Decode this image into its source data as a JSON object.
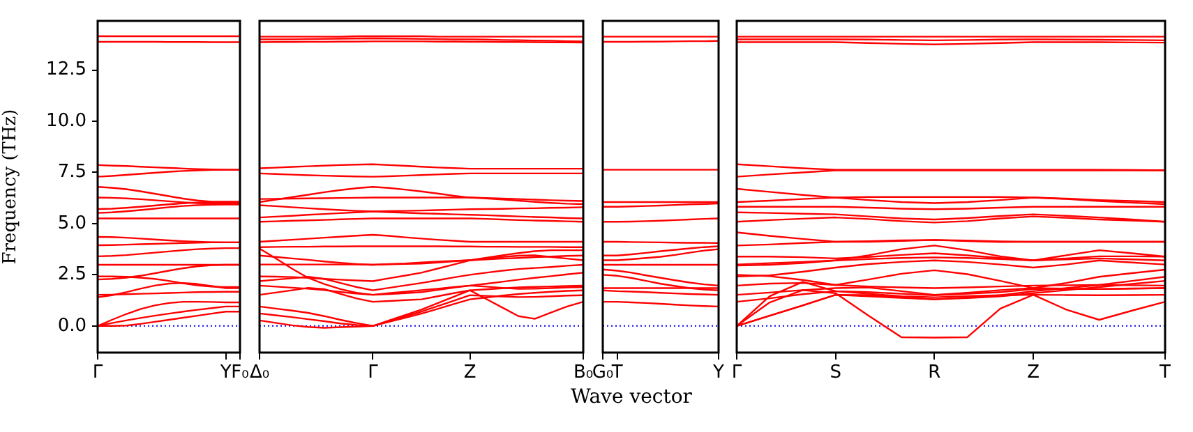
{
  "chart_data": [
    {
      "type": "line",
      "ylabel": "Frequency (THz)",
      "categories": [
        "Γ",
        null,
        null,
        null,
        null,
        null,
        null,
        null,
        null,
        "Y",
        "F₀"
      ],
      "ylim": [
        -1.3,
        14.9
      ],
      "yticks": [
        {
          "value": 0,
          "label": "0.0"
        },
        2.5,
        {
          "value": 5,
          "label": "5.0"
        },
        7.5,
        {
          "value": 10,
          "label": "10.0"
        },
        12.5
      ],
      "ref_lines": [
        {
          "axis": "y",
          "value": 0,
          "color": "#0000ff",
          "line_style": "dotted"
        }
      ],
      "series": [
        {
          "color": "#ff0000",
          "values": [
            14.15,
            14.15,
            14.15,
            14.15,
            14.15,
            14.15,
            14.15,
            14.15,
            14.15,
            14.15,
            14.15
          ]
        },
        {
          "color": "#ff0000",
          "values": [
            13.88,
            13.88,
            13.88,
            13.88,
            13.88,
            13.87,
            13.87,
            13.87,
            13.86,
            13.86,
            13.86
          ]
        },
        {
          "color": "#ff0000",
          "values": [
            7.86,
            7.83,
            7.81,
            7.78,
            7.75,
            7.72,
            7.69,
            7.66,
            7.64,
            7.63,
            7.63
          ]
        },
        {
          "color": "#ff0000",
          "values": [
            7.29,
            7.33,
            7.38,
            7.43,
            7.48,
            7.53,
            7.57,
            7.6,
            7.62,
            7.63,
            7.63
          ]
        },
        {
          "color": "#ff0000",
          "values": [
            6.79,
            6.75,
            6.68,
            6.58,
            6.46,
            6.34,
            6.22,
            6.13,
            6.07,
            6.05,
            6.05
          ]
        },
        {
          "color": "#ff0000",
          "values": [
            6.27,
            6.26,
            6.23,
            6.19,
            6.14,
            6.09,
            6.04,
            6.0,
            5.98,
            5.98,
            5.98
          ]
        },
        {
          "color": "#ff0000",
          "values": [
            5.71,
            5.73,
            5.77,
            5.82,
            5.88,
            5.94,
            5.99,
            6.03,
            6.06,
            6.07,
            6.07
          ]
        },
        {
          "color": "#ff0000",
          "values": [
            5.52,
            5.55,
            5.6,
            5.66,
            5.73,
            5.8,
            5.86,
            5.9,
            5.92,
            5.93,
            5.93
          ]
        },
        {
          "color": "#ff0000",
          "values": [
            5.25,
            5.25,
            5.25,
            5.25,
            5.25,
            5.25,
            5.25,
            5.25,
            5.25,
            5.25,
            5.25
          ]
        },
        {
          "color": "#ff0000",
          "values": [
            4.35,
            4.34,
            4.31,
            4.27,
            4.22,
            4.18,
            4.14,
            4.11,
            4.09,
            4.08,
            4.08
          ]
        },
        {
          "color": "#ff0000",
          "values": [
            3.94,
            3.95,
            3.97,
            3.99,
            4.01,
            4.03,
            4.05,
            4.07,
            4.08,
            4.08,
            4.08
          ]
        },
        {
          "color": "#ff0000",
          "values": [
            3.4,
            3.42,
            3.46,
            3.52,
            3.58,
            3.64,
            3.7,
            3.75,
            3.78,
            3.8,
            3.8
          ]
        },
        {
          "color": "#ff0000",
          "values": [
            2.99,
            2.99,
            2.99,
            2.99,
            2.99,
            2.99,
            2.99,
            2.99,
            2.99,
            2.99,
            2.99
          ]
        },
        {
          "color": "#ff0000",
          "values": [
            2.42,
            2.42,
            2.4,
            2.36,
            2.3,
            2.2,
            2.08,
            1.98,
            1.92,
            1.9,
            1.9
          ]
        },
        {
          "color": "#ff0000",
          "values": [
            2.27,
            2.3,
            2.36,
            2.45,
            2.57,
            2.7,
            2.82,
            2.91,
            2.97,
            2.99,
            2.99
          ]
        },
        {
          "color": "#ff0000",
          "values": [
            1.52,
            1.53,
            1.55,
            1.57,
            1.59,
            1.61,
            1.63,
            1.65,
            1.66,
            1.67,
            1.67
          ]
        },
        {
          "color": "#ff0000",
          "values": [
            1.4,
            1.5,
            1.65,
            1.82,
            1.97,
            2.07,
            2.1,
            2.05,
            1.95,
            1.85,
            1.85
          ]
        },
        {
          "color": "#ff0000",
          "values": [
            0,
            0.3,
            0.58,
            0.82,
            1.0,
            1.12,
            1.18,
            1.18,
            1.17,
            1.15,
            1.15
          ]
        },
        {
          "color": "#ff0000",
          "values": [
            0,
            0.14,
            0.27,
            0.39,
            0.5,
            0.6,
            0.7,
            0.79,
            0.87,
            0.95,
            0.95
          ]
        },
        {
          "color": "#ff0000",
          "values": [
            0,
            0,
            0.02,
            0.1,
            0.2,
            0.3,
            0.4,
            0.5,
            0.6,
            0.7,
            0.7
          ]
        }
      ]
    },
    {
      "type": "line",
      "tick_labels": "x",
      "categories": [
        "Δ₀",
        null,
        null,
        null,
        null,
        null,
        null,
        "Γ",
        null,
        null,
        null,
        null,
        null,
        "Z",
        null,
        null,
        null,
        null,
        null,
        null,
        "B₀"
      ],
      "ylim": [
        -1.3,
        14.9
      ],
      "ref_lines": [
        {
          "axis": "y",
          "value": 0,
          "color": "#0000ff",
          "line_style": "dotted"
        }
      ],
      "series": [
        {
          "color": "#ff0000",
          "values": [
            14.13,
            14.13,
            14.13,
            14.13,
            14.13,
            14.13,
            14.15,
            14.15,
            14.15,
            14.15,
            14.15,
            14.13,
            14.13,
            14.13,
            14.13,
            14.13,
            14.13,
            14.13,
            14.13,
            14.13,
            14.13
          ]
        },
        {
          "color": "#ff0000",
          "values": [
            14.0,
            14.0,
            14.0,
            14.01,
            14.02,
            14.03,
            14.04,
            14.05,
            14.04,
            14.03,
            14.02,
            14.01,
            14.0,
            14.0,
            13.99,
            13.97,
            13.96,
            13.94,
            13.93,
            13.91,
            13.9
          ]
        },
        {
          "color": "#ff0000",
          "values": [
            13.86,
            13.87,
            13.87,
            13.88,
            13.88,
            13.89,
            13.89,
            13.9,
            13.9,
            13.9,
            13.9,
            13.89,
            13.89,
            13.88,
            13.88,
            13.87,
            13.87,
            13.86,
            13.85,
            13.85,
            13.84
          ]
        },
        {
          "color": "#ff0000",
          "values": [
            7.7,
            7.73,
            7.77,
            7.8,
            7.83,
            7.86,
            7.88,
            7.9,
            7.86,
            7.82,
            7.78,
            7.74,
            7.71,
            7.68,
            7.68,
            7.68,
            7.68,
            7.68,
            7.68,
            7.68,
            7.68
          ]
        },
        {
          "color": "#ff0000",
          "values": [
            7.45,
            7.42,
            7.39,
            7.36,
            7.34,
            7.32,
            7.3,
            7.29,
            7.31,
            7.34,
            7.37,
            7.4,
            7.43,
            7.45,
            7.45,
            7.45,
            7.45,
            7.45,
            7.45,
            7.45,
            7.45
          ]
        },
        {
          "color": "#ff0000",
          "values": [
            6.05,
            6.17,
            6.29,
            6.41,
            6.53,
            6.64,
            6.73,
            6.79,
            6.74,
            6.66,
            6.57,
            6.47,
            6.36,
            6.27,
            6.25,
            6.22,
            6.2,
            6.17,
            6.14,
            6.12,
            6.1
          ]
        },
        {
          "color": "#ff0000",
          "values": [
            6.2,
            6.21,
            6.22,
            6.23,
            6.24,
            6.25,
            6.26,
            6.27,
            6.27,
            6.27,
            6.27,
            6.27,
            6.27,
            6.27,
            6.23,
            6.18,
            6.12,
            6.06,
            6.01,
            5.97,
            5.95
          ]
        },
        {
          "color": "#ff0000",
          "values": [
            5.9,
            5.85,
            5.8,
            5.75,
            5.7,
            5.66,
            5.62,
            5.59,
            5.61,
            5.62,
            5.64,
            5.66,
            5.68,
            5.7,
            5.71,
            5.72,
            5.74,
            5.75,
            5.77,
            5.78,
            5.8
          ]
        },
        {
          "color": "#ff0000",
          "values": [
            5.3,
            5.34,
            5.38,
            5.43,
            5.47,
            5.51,
            5.55,
            5.59,
            5.56,
            5.53,
            5.5,
            5.48,
            5.45,
            5.43,
            5.41,
            5.38,
            5.35,
            5.32,
            5.3,
            5.27,
            5.25
          ]
        },
        {
          "color": "#ff0000",
          "values": [
            5.09,
            5.11,
            5.14,
            5.16,
            5.18,
            5.21,
            5.23,
            5.25,
            5.25,
            5.25,
            5.25,
            5.25,
            5.25,
            5.25,
            5.23,
            5.2,
            5.17,
            5.15,
            5.13,
            5.11,
            5.09
          ]
        },
        {
          "color": "#ff0000",
          "values": [
            4.11,
            4.16,
            4.21,
            4.26,
            4.31,
            4.36,
            4.41,
            4.45,
            4.4,
            4.33,
            4.27,
            4.21,
            4.16,
            4.11,
            4.11,
            4.11,
            4.11,
            4.11,
            4.11,
            4.11,
            4.11
          ]
        },
        {
          "color": "#ff0000",
          "values": [
            3.85,
            3.86,
            3.87,
            3.87,
            3.88,
            3.88,
            3.89,
            3.89,
            3.89,
            3.89,
            3.89,
            3.89,
            3.88,
            3.88,
            3.87,
            3.87,
            3.86,
            3.86,
            3.86,
            3.85,
            3.85
          ]
        },
        {
          "color": "#ff0000",
          "values": [
            3.78,
            3.3,
            2.8,
            2.35,
            2.05,
            1.8,
            1.62,
            1.52,
            1.56,
            1.6,
            1.65,
            1.76,
            1.87,
            1.97,
            1.92,
            1.86,
            1.81,
            1.82,
            1.85,
            1.88,
            1.9
          ]
        },
        {
          "color": "#ff0000",
          "values": [
            3.44,
            3.37,
            3.3,
            3.23,
            3.15,
            3.08,
            3.02,
            2.99,
            3.01,
            3.03,
            3.05,
            3.1,
            3.16,
            3.21,
            3.33,
            3.45,
            3.56,
            3.65,
            3.7,
            3.7,
            3.7
          ]
        },
        {
          "color": "#ff0000",
          "values": [
            3.0,
            3.0,
            3.0,
            3.0,
            3.0,
            3.0,
            3.0,
            2.99,
            3.02,
            3.05,
            3.1,
            3.14,
            3.18,
            3.21,
            3.25,
            3.29,
            3.32,
            3.36,
            3.39,
            3.42,
            3.44
          ]
        },
        {
          "color": "#ff0000",
          "values": [
            2.42,
            2.41,
            2.39,
            2.35,
            2.3,
            2.26,
            2.22,
            2.19,
            2.33,
            2.46,
            2.6,
            2.8,
            3.0,
            3.21,
            3.29,
            3.37,
            3.43,
            3.45,
            3.37,
            3.29,
            3.21
          ]
        },
        {
          "color": "#ff0000",
          "values": [
            2.19,
            2.26,
            2.33,
            2.4,
            2.3,
            2.1,
            1.9,
            1.74,
            1.86,
            1.98,
            2.1,
            2.23,
            2.37,
            2.5,
            2.6,
            2.7,
            2.78,
            2.83,
            2.88,
            2.94,
            2.99
          ]
        },
        {
          "color": "#ff0000",
          "values": [
            1.97,
            1.92,
            1.87,
            1.82,
            1.75,
            1.66,
            1.58,
            1.52,
            1.6,
            1.67,
            1.75,
            1.82,
            1.9,
            1.97,
            2.06,
            2.16,
            2.26,
            2.35,
            2.43,
            2.52,
            2.6
          ]
        },
        {
          "color": "#ff0000",
          "values": [
            1.52,
            1.63,
            1.74,
            1.86,
            1.8,
            1.56,
            1.34,
            1.18,
            1.22,
            1.26,
            1.3,
            1.45,
            1.6,
            1.74,
            1.79,
            1.84,
            1.88,
            1.91,
            1.93,
            1.95,
            1.97
          ]
        },
        {
          "color": "#ff0000",
          "values": [
            0.95,
            0.85,
            0.75,
            0.64,
            0.48,
            0.3,
            0.14,
            0,
            0.23,
            0.47,
            0.7,
            0.97,
            1.23,
            1.5,
            1.47,
            1.44,
            1.41,
            1.42,
            1.45,
            1.48,
            1.5
          ]
        },
        {
          "color": "#ff0000",
          "values": [
            0.61,
            0.52,
            0.43,
            0.33,
            0.23,
            0.12,
            0.05,
            0,
            0.27,
            0.53,
            0.8,
            1.11,
            1.43,
            1.74,
            1.32,
            0.9,
            0.48,
            0.35,
            0.65,
            0.95,
            1.18
          ]
        },
        {
          "color": "#ff0000",
          "values": [
            0.27,
            0.15,
            0.03,
            -0.05,
            -0.09,
            -0.06,
            -0.03,
            0,
            0.2,
            0.4,
            0.6,
            0.83,
            1.07,
            1.3,
            1.39,
            1.48,
            1.56,
            1.62,
            1.67,
            1.71,
            1.74
          ]
        }
      ]
    },
    {
      "type": "line",
      "tick_labels": "x",
      "xlabel": "Wave vector",
      "categories": [
        "G₀",
        "T",
        null,
        null,
        null,
        null,
        null,
        null,
        "Y"
      ],
      "ylim": [
        -1.3,
        14.9
      ],
      "ref_lines": [
        {
          "axis": "y",
          "value": 0,
          "color": "#0000ff",
          "line_style": "dotted"
        }
      ],
      "series": [
        {
          "color": "#ff0000",
          "values": [
            14.13,
            14.13,
            14.13,
            14.13,
            14.13,
            14.13,
            14.13,
            14.13,
            14.13
          ]
        },
        {
          "color": "#ff0000",
          "values": [
            13.88,
            13.88,
            13.88,
            13.89,
            13.89,
            13.9,
            13.91,
            13.91,
            13.92
          ]
        },
        {
          "color": "#ff0000",
          "values": [
            7.63,
            7.63,
            7.63,
            7.63,
            7.63,
            7.63,
            7.63,
            7.63,
            7.63
          ]
        },
        {
          "color": "#ff0000",
          "values": [
            6.05,
            6.05,
            6.05,
            6.05,
            6.05,
            6.05,
            6.05,
            6.05,
            6.05
          ]
        },
        {
          "color": "#ff0000",
          "values": [
            5.82,
            5.82,
            5.84,
            5.86,
            5.88,
            5.91,
            5.94,
            5.96,
            5.98
          ]
        },
        {
          "color": "#ff0000",
          "values": [
            5.09,
            5.09,
            5.1,
            5.12,
            5.14,
            5.17,
            5.2,
            5.23,
            5.25
          ]
        },
        {
          "color": "#ff0000",
          "values": [
            4.11,
            4.11,
            4.1,
            4.09,
            4.08,
            4.07,
            4.06,
            4.06,
            4.05
          ]
        },
        {
          "color": "#ff0000",
          "values": [
            3.44,
            3.44,
            3.5,
            3.57,
            3.65,
            3.72,
            3.79,
            3.85,
            3.89
          ]
        },
        {
          "color": "#ff0000",
          "values": [
            3.21,
            3.21,
            3.26,
            3.32,
            3.38,
            3.47,
            3.58,
            3.68,
            3.75
          ]
        },
        {
          "color": "#ff0000",
          "values": [
            2.99,
            2.99,
            2.99,
            2.99,
            2.99,
            2.99,
            2.99,
            2.99,
            2.99
          ]
        },
        {
          "color": "#ff0000",
          "values": [
            2.76,
            2.7,
            2.6,
            2.47,
            2.35,
            2.23,
            2.12,
            2.03,
            1.97
          ]
        },
        {
          "color": "#ff0000",
          "values": [
            2.5,
            2.45,
            2.34,
            2.2,
            2.06,
            1.95,
            1.85,
            1.78,
            1.74
          ]
        },
        {
          "color": "#ff0000",
          "values": [
            1.85,
            1.85,
            1.85,
            1.85,
            1.85,
            1.85,
            1.85,
            1.85,
            1.85
          ]
        },
        {
          "color": "#ff0000",
          "values": [
            1.74,
            1.7,
            1.68,
            1.65,
            1.62,
            1.59,
            1.56,
            1.54,
            1.52
          ]
        },
        {
          "color": "#ff0000",
          "values": [
            1.18,
            1.18,
            1.15,
            1.12,
            1.08,
            1.04,
            1.0,
            0.97,
            0.95
          ]
        }
      ]
    },
    {
      "type": "line",
      "tick_labels": "x",
      "categories": [
        "Γ",
        null,
        null,
        "S",
        null,
        null,
        "R",
        null,
        null,
        "Z",
        null,
        null,
        null,
        "T"
      ],
      "ylim": [
        -1.3,
        14.9
      ],
      "ref_lines": [
        {
          "axis": "y",
          "value": 0,
          "color": "#0000ff",
          "line_style": "dotted"
        }
      ],
      "series": [
        {
          "color": "#ff0000",
          "values": [
            14.13,
            14.13,
            14.13,
            14.13,
            14.13,
            14.13,
            14.13,
            14.13,
            14.13,
            14.13,
            14.13,
            14.13,
            14.13,
            14.13
          ]
        },
        {
          "color": "#ff0000",
          "values": [
            14.0,
            14.0,
            14.0,
            14.0,
            13.99,
            13.97,
            13.95,
            13.97,
            13.99,
            14.0,
            13.99,
            13.98,
            13.97,
            13.95
          ]
        },
        {
          "color": "#ff0000",
          "values": [
            13.86,
            13.86,
            13.86,
            13.86,
            13.82,
            13.78,
            13.75,
            13.78,
            13.82,
            13.86,
            13.86,
            13.86,
            13.85,
            13.84
          ]
        },
        {
          "color": "#ff0000",
          "values": [
            7.9,
            7.8,
            7.7,
            7.63,
            7.63,
            7.63,
            7.63,
            7.63,
            7.63,
            7.63,
            7.63,
            7.63,
            7.62,
            7.6
          ]
        },
        {
          "color": "#ff0000",
          "values": [
            7.29,
            7.4,
            7.5,
            7.6,
            7.6,
            7.6,
            7.6,
            7.6,
            7.6,
            7.6,
            7.6,
            7.6,
            7.6,
            7.6
          ]
        },
        {
          "color": "#ff0000",
          "values": [
            6.7,
            6.55,
            6.4,
            6.27,
            6.15,
            6.05,
            6.0,
            6.05,
            6.15,
            6.27,
            6.22,
            6.15,
            6.1,
            6.05
          ]
        },
        {
          "color": "#ff0000",
          "values": [
            6.05,
            6.12,
            6.2,
            6.27,
            6.3,
            6.3,
            6.3,
            6.3,
            6.3,
            6.27,
            6.2,
            6.1,
            6.02,
            5.95
          ]
        },
        {
          "color": "#ff0000",
          "values": [
            5.82,
            5.82,
            5.82,
            5.82,
            5.78,
            5.73,
            5.7,
            5.73,
            5.78,
            5.82,
            5.82,
            5.82,
            5.82,
            5.82
          ]
        },
        {
          "color": "#ff0000",
          "values": [
            5.55,
            5.52,
            5.48,
            5.45,
            5.35,
            5.25,
            5.2,
            5.27,
            5.37,
            5.45,
            5.38,
            5.3,
            5.2,
            5.09
          ]
        },
        {
          "color": "#ff0000",
          "values": [
            5.09,
            5.17,
            5.24,
            5.3,
            5.22,
            5.12,
            5.05,
            5.12,
            5.25,
            5.35,
            5.28,
            5.2,
            5.15,
            5.09
          ]
        },
        {
          "color": "#ff0000",
          "values": [
            4.57,
            4.4,
            4.25,
            4.11,
            4.11,
            4.15,
            4.2,
            4.17,
            4.13,
            4.11,
            4.11,
            4.11,
            4.11,
            4.11
          ]
        },
        {
          "color": "#ff0000",
          "values": [
            3.93,
            3.98,
            4.05,
            4.11,
            4.14,
            4.18,
            4.2,
            4.14,
            4.1,
            4.11,
            4.11,
            4.11,
            4.11,
            4.11
          ]
        },
        {
          "color": "#ff0000",
          "values": [
            3.39,
            3.39,
            3.36,
            3.3,
            3.37,
            3.47,
            3.55,
            3.45,
            3.32,
            3.2,
            3.3,
            3.4,
            3.4,
            3.39
          ]
        },
        {
          "color": "#ff0000",
          "values": [
            3.0,
            3.07,
            3.13,
            3.2,
            3.45,
            3.75,
            3.93,
            3.7,
            3.4,
            3.2,
            3.45,
            3.7,
            3.55,
            3.39
          ]
        },
        {
          "color": "#ff0000",
          "values": [
            2.95,
            2.99,
            3.07,
            3.2,
            3.27,
            3.32,
            3.35,
            3.32,
            3.27,
            3.2,
            3.25,
            3.3,
            3.25,
            3.2
          ]
        },
        {
          "color": "#ff0000",
          "values": [
            2.42,
            2.47,
            2.65,
            2.85,
            3.02,
            3.13,
            3.2,
            3.13,
            3.0,
            2.85,
            3.0,
            3.2,
            3.1,
            3.0
          ]
        },
        {
          "color": "#ff0000",
          "values": [
            2.5,
            2.43,
            2.25,
            2.0,
            2.27,
            2.55,
            2.72,
            2.53,
            2.2,
            1.85,
            2.1,
            2.4,
            2.58,
            2.75
          ]
        },
        {
          "color": "#ff0000",
          "values": [
            1.97,
            2.07,
            2.1,
            2.0,
            1.93,
            1.88,
            1.85,
            1.88,
            1.93,
            1.97,
            1.99,
            2.0,
            1.99,
            1.97
          ]
        },
        {
          "color": "#ff0000",
          "values": [
            1.52,
            1.63,
            1.75,
            1.85,
            1.88,
            1.7,
            1.52,
            1.62,
            1.75,
            1.85,
            1.82,
            1.8,
            1.83,
            1.85
          ]
        },
        {
          "color": "#ff0000",
          "values": [
            1.18,
            1.35,
            1.55,
            1.7,
            1.57,
            1.45,
            1.4,
            1.46,
            1.5,
            1.52,
            1.51,
            1.5,
            1.51,
            1.52
          ]
        },
        {
          "color": "#ff0000",
          "values": [
            0,
            0.5,
            1.0,
            1.52,
            1.51,
            1.4,
            1.3,
            1.4,
            1.5,
            1.7,
            1.85,
            2.0,
            2.2,
            2.4
          ]
        },
        {
          "color": "#ff0000",
          "values": [
            0,
            0.5,
            1.0,
            1.52,
            1.45,
            1.37,
            1.3,
            1.36,
            1.45,
            1.6,
            1.75,
            1.9,
            2.05,
            2.2
          ]
        },
        {
          "color": "#ff0000",
          "values": [
            0,
            1.45,
            2.15,
            1.7,
            1.65,
            1.57,
            1.5,
            1.57,
            1.65,
            1.8,
            1.8,
            1.8,
            1.82,
            1.85
          ]
        },
        {
          "color": "#ff0000",
          "values": [
            0,
            1.15,
            1.75,
            1.6,
            0.5,
            -0.55,
            -0.57,
            -0.55,
            0.85,
            1.52,
            0.8,
            0.3,
            0.75,
            1.18
          ]
        }
      ]
    }
  ]
}
